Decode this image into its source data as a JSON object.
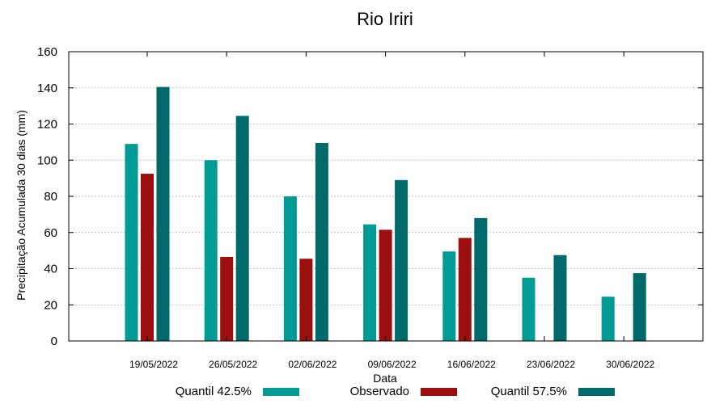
{
  "chart_data": {
    "type": "bar",
    "title": "Rio Iriri",
    "xlabel": "Data",
    "ylabel": "Precipitação Acumulada 30 dias (mm)",
    "ylim": [
      0,
      160
    ],
    "yticks": [
      "0",
      "20",
      "40",
      "60",
      "80",
      "100",
      "120",
      "140",
      "160"
    ],
    "grid": true,
    "legend_position": "bottom",
    "categories": [
      "19/05/2022",
      "26/05/2022",
      "02/06/2022",
      "09/06/2022",
      "16/06/2022",
      "23/06/2022",
      "30/06/2022"
    ],
    "series": [
      {
        "name": "Quantil 42.5%",
        "color": "#009b95",
        "values": [
          109,
          100,
          80,
          64.5,
          49.5,
          35,
          24.5
        ]
      },
      {
        "name": "Observado",
        "color": "#9b0f0f",
        "values": [
          92.5,
          46.5,
          45.5,
          61.5,
          57,
          null,
          null
        ]
      },
      {
        "name": "Quantil 57.5%",
        "color": "#00696a",
        "values": [
          140.5,
          124.5,
          109.5,
          89,
          68,
          47.5,
          37.5
        ]
      }
    ]
  }
}
